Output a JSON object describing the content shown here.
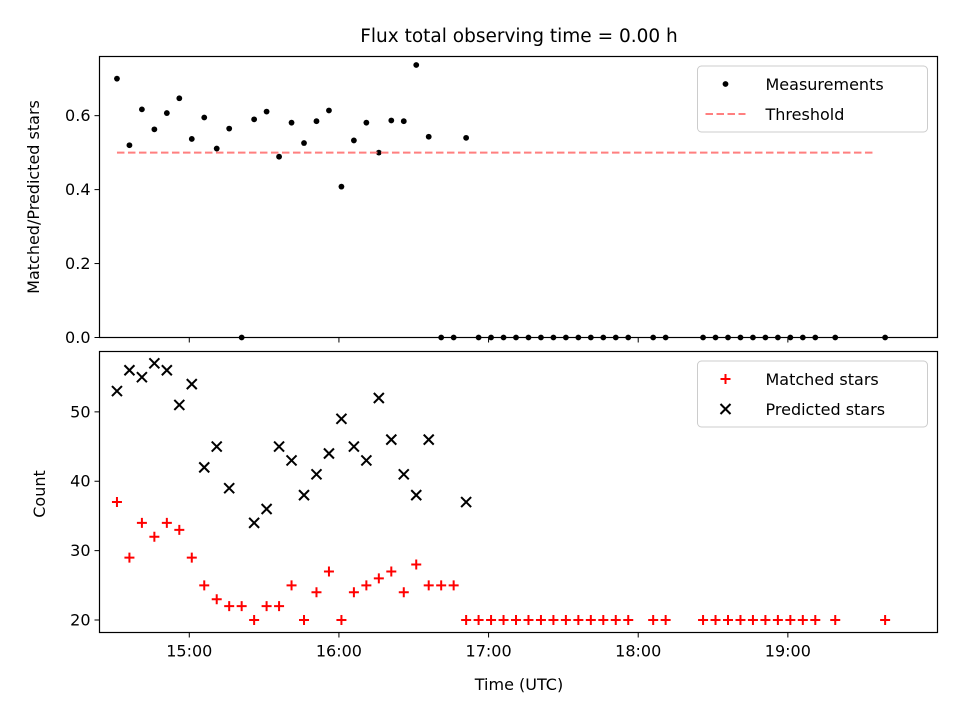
{
  "title": "Flux total observing time = 0.00 h",
  "chart_data": [
    {
      "type": "scatter",
      "ylabel": "Matched/Predicted stars",
      "ylim": [
        0,
        0.76
      ],
      "xlim": [
        "14:24",
        "20:00"
      ],
      "yticks": [
        {
          "v": 0,
          "label": "0.0"
        },
        {
          "v": 0.2,
          "label": "0.2"
        },
        {
          "v": 0.4,
          "label": "0.4"
        },
        {
          "v": 0.6,
          "label": "0.6"
        }
      ],
      "legend_position": "top-right",
      "grid": false,
      "series": [
        {
          "name": "Measurements",
          "marker": "dot",
          "color": "#000000",
          "points": [
            [
              "14:31",
              0.7
            ],
            [
              "14:36",
              0.52
            ],
            [
              "14:41",
              0.617
            ],
            [
              "14:46",
              0.563
            ],
            [
              "14:51",
              0.607
            ],
            [
              "14:56",
              0.647
            ],
            [
              "15:01",
              0.537
            ],
            [
              "15:06",
              0.595
            ],
            [
              "15:11",
              0.511
            ],
            [
              "15:16",
              0.565
            ],
            [
              "15:21",
              0.0
            ],
            [
              "15:26",
              0.59
            ],
            [
              "15:31",
              0.611
            ],
            [
              "15:36",
              0.489
            ],
            [
              "15:41",
              0.581
            ],
            [
              "15:46",
              0.526
            ],
            [
              "15:51",
              0.585
            ],
            [
              "15:56",
              0.614
            ],
            [
              "16:01",
              0.408
            ],
            [
              "16:06",
              0.533
            ],
            [
              "16:11",
              0.581
            ],
            [
              "16:16",
              0.5
            ],
            [
              "16:21",
              0.587
            ],
            [
              "16:26",
              0.585
            ],
            [
              "16:31",
              0.737
            ],
            [
              "16:36",
              0.543
            ],
            [
              "16:41",
              0.0
            ],
            [
              "16:46",
              0.0
            ],
            [
              "16:51",
              0.54
            ],
            [
              "16:56",
              0.0
            ],
            [
              "17:01",
              0.0
            ],
            [
              "17:06",
              0.0
            ],
            [
              "17:11",
              0.0
            ],
            [
              "17:16",
              0.0
            ],
            [
              "17:21",
              0.0
            ],
            [
              "17:26",
              0.0
            ],
            [
              "17:31",
              0.0
            ],
            [
              "17:36",
              0.0
            ],
            [
              "17:41",
              0.0
            ],
            [
              "17:46",
              0.0
            ],
            [
              "17:51",
              0.0
            ],
            [
              "17:56",
              0.0
            ],
            [
              "18:06",
              0.0
            ],
            [
              "18:11",
              0.0
            ],
            [
              "18:26",
              0.0
            ],
            [
              "18:31",
              0.0
            ],
            [
              "18:36",
              0.0
            ],
            [
              "18:41",
              0.0
            ],
            [
              "18:46",
              0.0
            ],
            [
              "18:51",
              0.0
            ],
            [
              "18:56",
              0.0
            ],
            [
              "19:01",
              0.0
            ],
            [
              "19:06",
              0.0
            ],
            [
              "19:11",
              0.0
            ],
            [
              "19:19",
              0.0
            ],
            [
              "19:39",
              0.0
            ]
          ]
        },
        {
          "name": "Threshold",
          "marker": "dashed-line",
          "color": "#ff7f7f",
          "points": [
            [
              "14:31",
              0.5
            ],
            [
              "19:35",
              0.5
            ]
          ]
        }
      ]
    },
    {
      "type": "scatter",
      "xlabel": "Time (UTC)",
      "ylabel": "Count",
      "ylim": [
        18.2,
        58.7
      ],
      "xlim": [
        "14:24",
        "20:00"
      ],
      "xticks": [
        "15:00",
        "16:00",
        "17:00",
        "18:00",
        "19:00"
      ],
      "yticks": [
        {
          "v": 20,
          "label": "20"
        },
        {
          "v": 30,
          "label": "30"
        },
        {
          "v": 40,
          "label": "40"
        },
        {
          "v": 50,
          "label": "50"
        }
      ],
      "legend_position": "top-right",
      "grid": false,
      "series": [
        {
          "name": "Matched stars",
          "marker": "plus",
          "color": "#ff0000",
          "points": [
            [
              "14:31",
              37
            ],
            [
              "14:36",
              29
            ],
            [
              "14:41",
              34
            ],
            [
              "14:46",
              32
            ],
            [
              "14:51",
              34
            ],
            [
              "14:56",
              33
            ],
            [
              "15:01",
              29
            ],
            [
              "15:06",
              25
            ],
            [
              "15:11",
              23
            ],
            [
              "15:16",
              22
            ],
            [
              "15:21",
              22
            ],
            [
              "15:26",
              20
            ],
            [
              "15:31",
              22
            ],
            [
              "15:36",
              22
            ],
            [
              "15:41",
              25
            ],
            [
              "15:46",
              20
            ],
            [
              "15:51",
              24
            ],
            [
              "15:56",
              27
            ],
            [
              "16:01",
              20
            ],
            [
              "16:06",
              24
            ],
            [
              "16:11",
              25
            ],
            [
              "16:16",
              26
            ],
            [
              "16:21",
              27
            ],
            [
              "16:26",
              24
            ],
            [
              "16:31",
              28
            ],
            [
              "16:36",
              25
            ],
            [
              "16:41",
              25
            ],
            [
              "16:46",
              25
            ],
            [
              "16:51",
              20
            ],
            [
              "16:56",
              20
            ],
            [
              "17:01",
              20
            ],
            [
              "17:06",
              20
            ],
            [
              "17:11",
              20
            ],
            [
              "17:16",
              20
            ],
            [
              "17:21",
              20
            ],
            [
              "17:26",
              20
            ],
            [
              "17:31",
              20
            ],
            [
              "17:36",
              20
            ],
            [
              "17:41",
              20
            ],
            [
              "17:46",
              20
            ],
            [
              "17:51",
              20
            ],
            [
              "17:56",
              20
            ],
            [
              "18:06",
              20
            ],
            [
              "18:11",
              20
            ],
            [
              "18:26",
              20
            ],
            [
              "18:31",
              20
            ],
            [
              "18:36",
              20
            ],
            [
              "18:41",
              20
            ],
            [
              "18:46",
              20
            ],
            [
              "18:51",
              20
            ],
            [
              "18:56",
              20
            ],
            [
              "19:01",
              20
            ],
            [
              "19:06",
              20
            ],
            [
              "19:11",
              20
            ],
            [
              "19:19",
              20
            ],
            [
              "19:39",
              20
            ]
          ]
        },
        {
          "name": "Predicted stars",
          "marker": "x",
          "color": "#000000",
          "points": [
            [
              "14:31",
              53
            ],
            [
              "14:36",
              56
            ],
            [
              "14:41",
              55
            ],
            [
              "14:46",
              57
            ],
            [
              "14:51",
              56
            ],
            [
              "14:56",
              51
            ],
            [
              "15:01",
              54
            ],
            [
              "15:06",
              42
            ],
            [
              "15:11",
              45
            ],
            [
              "15:16",
              39
            ],
            [
              "15:26",
              34
            ],
            [
              "15:31",
              36
            ],
            [
              "15:36",
              45
            ],
            [
              "15:41",
              43
            ],
            [
              "15:46",
              38
            ],
            [
              "15:51",
              41
            ],
            [
              "15:56",
              44
            ],
            [
              "16:01",
              49
            ],
            [
              "16:06",
              45
            ],
            [
              "16:11",
              43
            ],
            [
              "16:16",
              52
            ],
            [
              "16:21",
              46
            ],
            [
              "16:26",
              41
            ],
            [
              "16:31",
              38
            ],
            [
              "16:36",
              46
            ],
            [
              "16:51",
              37
            ]
          ]
        }
      ]
    }
  ]
}
